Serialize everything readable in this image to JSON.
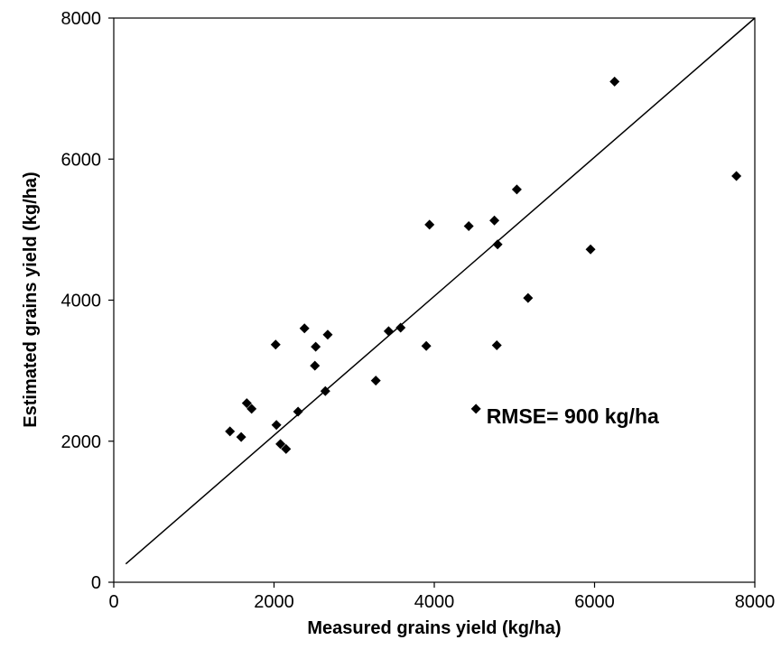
{
  "chart_data": {
    "type": "scatter",
    "title": "",
    "xlabel": "Measured grains yield (kg/ha)",
    "ylabel": "Estimated grains  yield (kg/ha)",
    "xlim": [
      0,
      8000
    ],
    "ylim": [
      0,
      8000
    ],
    "xticks": [
      0,
      2000,
      4000,
      6000,
      8000
    ],
    "yticks": [
      0,
      2000,
      4000,
      6000,
      8000
    ],
    "grid": false,
    "legend": "none",
    "marker": "diamond",
    "marker_color": "#000000",
    "points": [
      {
        "x": 1450,
        "y": 2140
      },
      {
        "x": 1590,
        "y": 2060
      },
      {
        "x": 1660,
        "y": 2540
      },
      {
        "x": 1720,
        "y": 2460
      },
      {
        "x": 2020,
        "y": 3370
      },
      {
        "x": 2030,
        "y": 2230
      },
      {
        "x": 2080,
        "y": 1960
      },
      {
        "x": 2150,
        "y": 1890
      },
      {
        "x": 2300,
        "y": 2420
      },
      {
        "x": 2380,
        "y": 3600
      },
      {
        "x": 2510,
        "y": 3070
      },
      {
        "x": 2520,
        "y": 3340
      },
      {
        "x": 2640,
        "y": 2710
      },
      {
        "x": 2670,
        "y": 3510
      },
      {
        "x": 3270,
        "y": 2860
      },
      {
        "x": 3430,
        "y": 3560
      },
      {
        "x": 3580,
        "y": 3610
      },
      {
        "x": 3900,
        "y": 3350
      },
      {
        "x": 3940,
        "y": 5070
      },
      {
        "x": 4430,
        "y": 5050
      },
      {
        "x": 4520,
        "y": 2460
      },
      {
        "x": 4750,
        "y": 5130
      },
      {
        "x": 4780,
        "y": 3360
      },
      {
        "x": 4790,
        "y": 4790
      },
      {
        "x": 5030,
        "y": 5570
      },
      {
        "x": 5170,
        "y": 4030
      },
      {
        "x": 5950,
        "y": 4720
      },
      {
        "x": 6250,
        "y": 7100
      },
      {
        "x": 7770,
        "y": 5760
      }
    ],
    "reference_line": {
      "x": [
        150,
        8000
      ],
      "y": [
        260,
        8000
      ]
    },
    "annotations": [
      {
        "text": "RMSE=  900 kg/ha",
        "x": 4650,
        "y": 2250
      }
    ]
  }
}
